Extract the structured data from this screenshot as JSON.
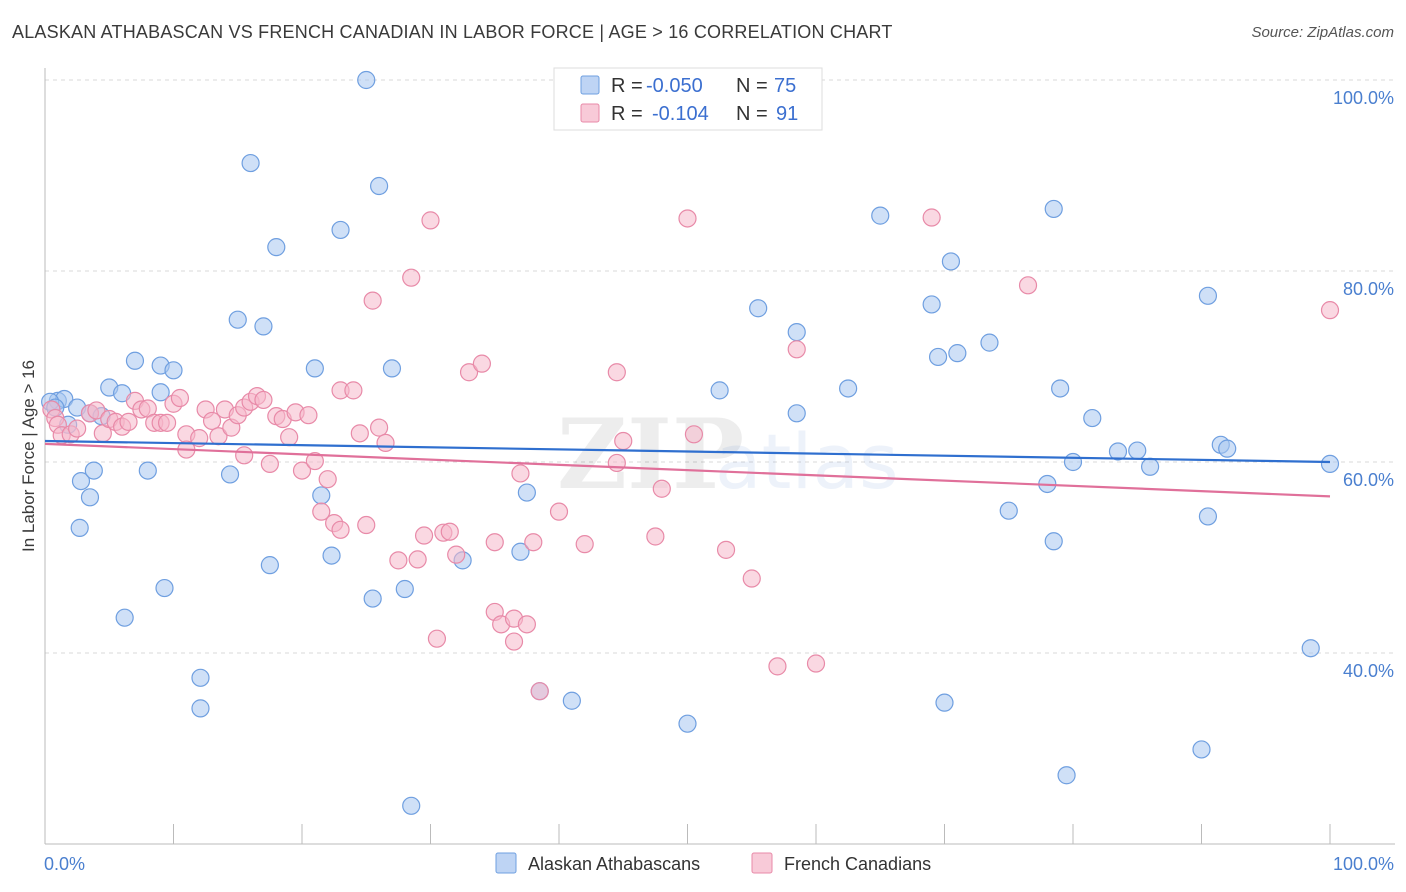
{
  "title": "ALASKAN ATHABASCAN VS FRENCH CANADIAN IN LABOR FORCE | AGE > 16 CORRELATION CHART",
  "source": "Source: ZipAtlas.com",
  "watermark": "ZIPatlas",
  "legend": {
    "r_label": "R =",
    "n_label": "N =",
    "series": [
      {
        "r": "-0.050",
        "n": "75"
      },
      {
        "r": "-0.104",
        "n": "91"
      }
    ]
  },
  "chart_data": {
    "type": "scatter",
    "title": "ALASKAN ATHABASCAN VS FRENCH CANADIAN IN LABOR FORCE | AGE > 16 CORRELATION CHART",
    "xlabel": "",
    "ylabel": "In Labor Force | Age > 16",
    "xlim": [
      0,
      100
    ],
    "ylim": [
      20,
      103
    ],
    "x_ticks": [
      "0.0%",
      "100.0%"
    ],
    "y_ticks": [
      {
        "value": 100,
        "label": "100.0%"
      },
      {
        "value": 80,
        "label": "80.0%"
      },
      {
        "value": 60,
        "label": "60.0%"
      },
      {
        "value": 40,
        "label": "40.0%"
      }
    ],
    "grid": true,
    "legend_position": "top-center",
    "series": [
      {
        "name": "Alaskan Athabascans",
        "color": "#a8c6f0",
        "edge": "#6f9fe0",
        "line_color": "#2f6fcf",
        "trend": {
          "y0": 62.2,
          "y1": 60.0
        },
        "points": [
          [
            25,
            100
          ],
          [
            16,
            91.3
          ],
          [
            26,
            88.9
          ],
          [
            18,
            82.5
          ],
          [
            23,
            84.3
          ],
          [
            15,
            74.9
          ],
          [
            17,
            74.2
          ],
          [
            7,
            70.6
          ],
          [
            9,
            70.1
          ],
          [
            10,
            69.6
          ],
          [
            21,
            69.8
          ],
          [
            27,
            69.8
          ],
          [
            5,
            67.8
          ],
          [
            6,
            67.2
          ],
          [
            9,
            67.3
          ],
          [
            1,
            66.4
          ],
          [
            1.5,
            66.6
          ],
          [
            0.4,
            66.3
          ],
          [
            0.8,
            65.7
          ],
          [
            2.5,
            65.7
          ],
          [
            3.5,
            65.1
          ],
          [
            4.4,
            64.8
          ],
          [
            1.8,
            63.9
          ],
          [
            2.8,
            58.0
          ],
          [
            3.8,
            59.1
          ],
          [
            3.5,
            56.3
          ],
          [
            2.7,
            53.1
          ],
          [
            8,
            59.1
          ],
          [
            14.4,
            58.7
          ],
          [
            21.5,
            56.5
          ],
          [
            17.5,
            49.2
          ],
          [
            22.3,
            50.2
          ],
          [
            9.3,
            46.8
          ],
          [
            6.2,
            43.7
          ],
          [
            12.1,
            37.4
          ],
          [
            12.1,
            34.2
          ],
          [
            25.5,
            45.7
          ],
          [
            28,
            46.7
          ],
          [
            32.5,
            49.7
          ],
          [
            37.5,
            56.8
          ],
          [
            37,
            50.6
          ],
          [
            38.5,
            36.0
          ],
          [
            41,
            35.0
          ],
          [
            50,
            32.6
          ],
          [
            52.5,
            67.5
          ],
          [
            55.5,
            76.1
          ],
          [
            58.5,
            73.6
          ],
          [
            62.5,
            67.7
          ],
          [
            65,
            85.8
          ],
          [
            69,
            76.5
          ],
          [
            70.5,
            81.0
          ],
          [
            69.5,
            71.0
          ],
          [
            71,
            71.4
          ],
          [
            73.5,
            72.5
          ],
          [
            78.5,
            86.5
          ],
          [
            79,
            67.7
          ],
          [
            81.5,
            64.6
          ],
          [
            80,
            60.0
          ],
          [
            75,
            54.9
          ],
          [
            78,
            57.7
          ],
          [
            78.5,
            51.7
          ],
          [
            83.5,
            61.1
          ],
          [
            85,
            61.2
          ],
          [
            86,
            59.5
          ],
          [
            90.5,
            77.4
          ],
          [
            90.5,
            54.3
          ],
          [
            91.5,
            61.8
          ],
          [
            92,
            61.4
          ],
          [
            100,
            59.8
          ],
          [
            98.5,
            40.5
          ],
          [
            90,
            29.9
          ],
          [
            79.5,
            27.2
          ],
          [
            70,
            34.8
          ],
          [
            58.5,
            65.1
          ],
          [
            28.5,
            24
          ]
        ]
      },
      {
        "name": "French Canadians",
        "color": "#f5b8cb",
        "edge": "#e88aa8",
        "line_color": "#e0709a",
        "trend": {
          "y0": 61.9,
          "y1": 56.4
        },
        "points": [
          [
            0.5,
            65.5
          ],
          [
            0.8,
            64.6
          ],
          [
            1.0,
            63.9
          ],
          [
            1.3,
            62.8
          ],
          [
            2.0,
            62.9
          ],
          [
            2.5,
            63.5
          ],
          [
            3.5,
            65.1
          ],
          [
            4.0,
            65.4
          ],
          [
            4.5,
            63.0
          ],
          [
            5.0,
            64.5
          ],
          [
            5.5,
            64.2
          ],
          [
            6.0,
            63.7
          ],
          [
            6.5,
            64.2
          ],
          [
            7.0,
            66.4
          ],
          [
            7.5,
            65.5
          ],
          [
            8.0,
            65.6
          ],
          [
            8.5,
            64.1
          ],
          [
            9.0,
            64.1
          ],
          [
            9.5,
            64.1
          ],
          [
            10,
            66.1
          ],
          [
            10.5,
            66.7
          ],
          [
            11,
            62.9
          ],
          [
            11,
            61.3
          ],
          [
            12,
            62.5
          ],
          [
            12.5,
            65.5
          ],
          [
            13,
            64.3
          ],
          [
            13.5,
            62.7
          ],
          [
            14,
            65.5
          ],
          [
            14.5,
            63.6
          ],
          [
            15,
            64.9
          ],
          [
            15.5,
            65.7
          ],
          [
            15.5,
            60.7
          ],
          [
            16,
            66.3
          ],
          [
            16.5,
            66.9
          ],
          [
            17,
            66.5
          ],
          [
            17.5,
            59.8
          ],
          [
            18,
            64.8
          ],
          [
            18.5,
            64.5
          ],
          [
            19,
            62.6
          ],
          [
            19.5,
            65.2
          ],
          [
            20,
            59.1
          ],
          [
            20.5,
            64.9
          ],
          [
            21,
            60.1
          ],
          [
            21.5,
            54.8
          ],
          [
            22,
            58.2
          ],
          [
            22.5,
            53.6
          ],
          [
            23,
            52.9
          ],
          [
            23,
            67.5
          ],
          [
            24,
            67.5
          ],
          [
            24.5,
            63.0
          ],
          [
            25,
            53.4
          ],
          [
            25.5,
            76.9
          ],
          [
            26,
            63.6
          ],
          [
            26.5,
            62.0
          ],
          [
            27.5,
            49.7
          ],
          [
            28.5,
            79.3
          ],
          [
            29,
            49.8
          ],
          [
            29.5,
            52.3
          ],
          [
            30,
            85.3
          ],
          [
            30.5,
            41.5
          ],
          [
            31,
            52.6
          ],
          [
            31.5,
            52.7
          ],
          [
            32,
            50.3
          ],
          [
            33,
            69.4
          ],
          [
            34,
            70.3
          ],
          [
            35,
            51.6
          ],
          [
            35,
            44.3
          ],
          [
            35.5,
            43.0
          ],
          [
            36.5,
            43.6
          ],
          [
            36.5,
            41.2
          ],
          [
            37.5,
            43.0
          ],
          [
            37,
            58.8
          ],
          [
            38,
            51.6
          ],
          [
            38.5,
            36.0
          ],
          [
            40,
            54.8
          ],
          [
            42,
            51.4
          ],
          [
            44.5,
            69.4
          ],
          [
            44.5,
            59.9
          ],
          [
            45,
            62.2
          ],
          [
            47.5,
            52.2
          ],
          [
            48,
            57.2
          ],
          [
            50,
            85.5
          ],
          [
            50.5,
            62.9
          ],
          [
            53,
            50.8
          ],
          [
            55,
            47.8
          ],
          [
            57,
            38.6
          ],
          [
            58.5,
            71.8
          ],
          [
            60,
            38.9
          ],
          [
            69,
            85.6
          ],
          [
            76.5,
            78.5
          ],
          [
            100,
            75.9
          ]
        ]
      }
    ]
  },
  "bottom_legend": [
    "Alaskan Athabascans",
    "French Canadians"
  ]
}
